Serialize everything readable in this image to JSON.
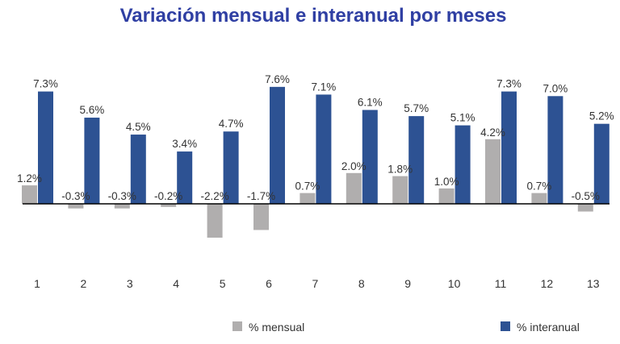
{
  "chart_data": {
    "type": "bar",
    "title": "Variación mensual e interanual por meses",
    "xlabel": "",
    "ylabel": "",
    "categories": [
      "1",
      "2",
      "3",
      "4",
      "5",
      "6",
      "7",
      "8",
      "9",
      "10",
      "11",
      "12",
      "13"
    ],
    "series": [
      {
        "name": "% mensual",
        "color": "#b0aeae",
        "values": [
          1.2,
          -0.3,
          -0.3,
          -0.2,
          -2.2,
          -1.7,
          0.7,
          2.0,
          1.8,
          1.0,
          4.2,
          0.7,
          -0.5
        ],
        "labels": [
          "1.2%",
          "-0.3%",
          "-0.3%",
          "-0.2%",
          "-2.2%",
          "-1.7%",
          "0.7%",
          "2.0%",
          "1.8%",
          "1.0%",
          "4.2%",
          "0.7%",
          "-0.5%"
        ]
      },
      {
        "name": "% interanual",
        "color": "#2d5293",
        "values": [
          7.3,
          5.6,
          4.5,
          3.4,
          4.7,
          7.6,
          7.1,
          6.1,
          5.7,
          5.1,
          7.3,
          7.0,
          5.2
        ],
        "labels": [
          "7.3%",
          "5.6%",
          "4.5%",
          "3.4%",
          "4.7%",
          "7.6%",
          "7.1%",
          "6.1%",
          "5.7%",
          "5.1%",
          "7.3%",
          "7.0%",
          "5.2%"
        ]
      }
    ],
    "ylim": [
      -2.5,
      8.5
    ],
    "grid": false,
    "legend": "bottom"
  }
}
